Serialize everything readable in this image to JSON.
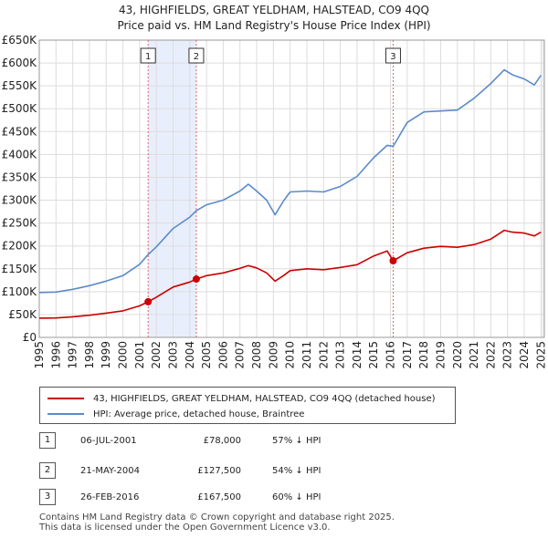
{
  "title_line1": "43, HIGHFIELDS, GREAT YELDHAM, HALSTEAD, CO9 4QQ",
  "title_line2": "Price paid vs. HM Land Registry's House Price Index (HPI)",
  "chart_data": {
    "type": "line",
    "xlim": [
      1995,
      2025.2
    ],
    "ylim": [
      0,
      650000
    ],
    "y_ticks": [
      0,
      50000,
      100000,
      150000,
      200000,
      250000,
      300000,
      350000,
      400000,
      450000,
      500000,
      550000,
      600000,
      650000
    ],
    "y_tick_labels": [
      "£0",
      "£50K",
      "£100K",
      "£150K",
      "£200K",
      "£250K",
      "£300K",
      "£350K",
      "£400K",
      "£450K",
      "£500K",
      "£550K",
      "£600K",
      "£650K"
    ],
    "x_ticks": [
      1995,
      1996,
      1997,
      1998,
      1999,
      2000,
      2001,
      2002,
      2003,
      2004,
      2005,
      2006,
      2007,
      2008,
      2009,
      2010,
      2011,
      2012,
      2013,
      2014,
      2015,
      2016,
      2017,
      2018,
      2019,
      2020,
      2021,
      2022,
      2023,
      2024,
      2025
    ],
    "x_tick_labels": [
      "1995",
      "1996",
      "1997",
      "1998",
      "1999",
      "2000",
      "2001",
      "2002",
      "2003",
      "2004",
      "2005",
      "2006",
      "2007",
      "2008",
      "2009",
      "2010",
      "2011",
      "2012",
      "2013",
      "2014",
      "2015",
      "2016",
      "2017",
      "2018",
      "2019",
      "2020",
      "2021",
      "2022",
      "2023",
      "2024",
      "2025"
    ],
    "grid": true,
    "shaded_spans": [
      [
        2001.51,
        2004.39
      ]
    ],
    "series": [
      {
        "name": "43, HIGHFIELDS, GREAT YELDHAM, HALSTEAD, CO9 4QQ (detached house)",
        "color": "#cc0000",
        "x": [
          1995,
          1996,
          1997,
          1998,
          1999,
          2000,
          2001,
          2001.51,
          2002,
          2003,
          2004,
          2004.39,
          2005,
          2006,
          2007,
          2007.5,
          2008,
          2008.6,
          2009.1,
          2009.6,
          2010,
          2011,
          2012,
          2013,
          2014,
          2015,
          2015.8,
          2016.16,
          2017,
          2018,
          2019,
          2020,
          2021,
          2022,
          2022.8,
          2023.3,
          2024,
          2024.6,
          2025
        ],
        "values": [
          42000,
          42500,
          45000,
          48500,
          53000,
          58000,
          69000,
          78000,
          88000,
          110000,
          121000,
          127500,
          135000,
          141000,
          151000,
          157000,
          152000,
          141000,
          123000,
          135000,
          146000,
          150000,
          148000,
          153000,
          159000,
          178000,
          189000,
          167500,
          185000,
          195000,
          199000,
          197000,
          203000,
          215000,
          234000,
          230000,
          228000,
          222000,
          230000
        ]
      },
      {
        "name": "HPI: Average price, detached house, Braintree",
        "color": "#5b8bcb",
        "x": [
          1995,
          1996,
          1997,
          1998,
          1999,
          2000,
          2001,
          2001.51,
          2002,
          2003,
          2004,
          2004.39,
          2005,
          2006,
          2007,
          2007.5,
          2008,
          2008.6,
          2009.1,
          2009.6,
          2010,
          2011,
          2012,
          2013,
          2014,
          2015,
          2015.8,
          2016.16,
          2017,
          2018,
          2019,
          2020,
          2021,
          2022,
          2022.8,
          2023.3,
          2024,
          2024.6,
          2025
        ],
        "values": [
          98000,
          99000,
          105000,
          113000,
          123000,
          135000,
          160000,
          181000,
          198000,
          238000,
          263000,
          277000,
          290000,
          300000,
          320000,
          335000,
          320000,
          300000,
          268000,
          298000,
          318000,
          320000,
          318000,
          330000,
          352000,
          393000,
          420000,
          418000,
          470000,
          493000,
          495000,
          497000,
          523000,
          555000,
          585000,
          574000,
          565000,
          552000,
          573000
        ]
      }
    ],
    "sales": [
      {
        "label": "1",
        "x": 2001.51,
        "value": 78000
      },
      {
        "label": "2",
        "x": 2004.39,
        "value": 127500
      },
      {
        "label": "3",
        "x": 2016.16,
        "value": 167500
      }
    ]
  },
  "legend": {
    "property": "43, HIGHFIELDS, GREAT YELDHAM, HALSTEAD, CO9 4QQ (detached house)",
    "hpi": "HPI: Average price, detached house, Braintree"
  },
  "transactions": [
    {
      "num": "1",
      "date": "06-JUL-2001",
      "price": "£78,000",
      "pct": "57% ↓ HPI"
    },
    {
      "num": "2",
      "date": "21-MAY-2004",
      "price": "£127,500",
      "pct": "54% ↓ HPI"
    },
    {
      "num": "3",
      "date": "26-FEB-2016",
      "price": "£167,500",
      "pct": "60% ↓ HPI"
    }
  ],
  "footer": {
    "line1": "Contains HM Land Registry data © Crown copyright and database right 2025.",
    "line2": "This data is licensed under the Open Government Licence v3.0."
  },
  "colors": {
    "property": "#cc0000",
    "hpi": "#5b8bcb",
    "shade": "#e8eefb",
    "grid": "#dddddd",
    "vline": "#e06666"
  }
}
